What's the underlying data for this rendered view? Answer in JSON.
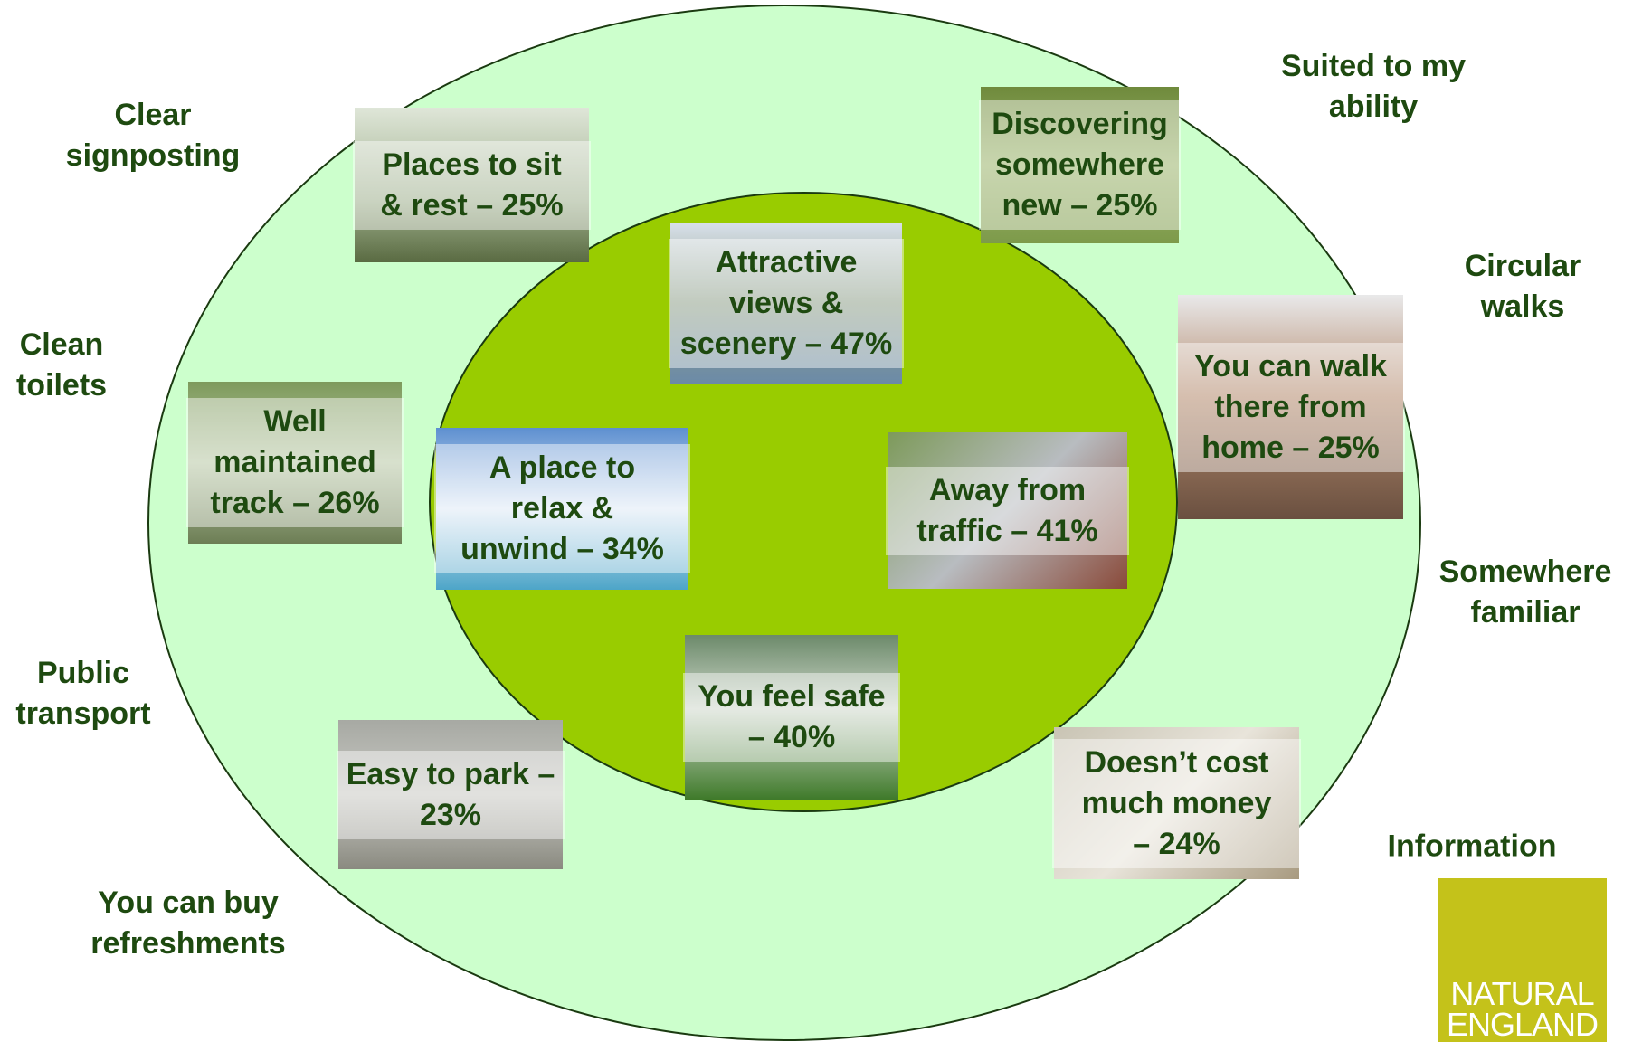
{
  "outer_labels": [
    {
      "lines": [
        "Clear",
        "signposting"
      ]
    },
    {
      "lines": [
        "Clean",
        "toilets"
      ]
    },
    {
      "lines": [
        "Public",
        "transport"
      ]
    },
    {
      "lines": [
        "You can buy",
        "refreshments"
      ]
    },
    {
      "lines": [
        "Suited to my",
        "ability"
      ]
    },
    {
      "lines": [
        "Circular",
        "walks"
      ]
    },
    {
      "lines": [
        "Somewhere",
        "familiar"
      ]
    },
    {
      "lines": [
        "Information"
      ]
    }
  ],
  "photo_boxes": [
    {
      "lines": [
        "Places to sit",
        "& rest – 25%"
      ]
    },
    {
      "lines": [
        "Discovering",
        "somewhere",
        "new – 25%"
      ]
    },
    {
      "lines": [
        "Attractive",
        "views &",
        "scenery – 47%"
      ]
    },
    {
      "lines": [
        "Well",
        "maintained",
        "track – 26%"
      ]
    },
    {
      "lines": [
        "A place to",
        "relax &",
        "unwind – 34%"
      ]
    },
    {
      "lines": [
        "Away from",
        "traffic – 41%"
      ]
    },
    {
      "lines": [
        "You can walk",
        "there from",
        "home – 25%"
      ]
    },
    {
      "lines": [
        "You feel safe",
        "– 40%"
      ]
    },
    {
      "lines": [
        "Easy to park –",
        "23%"
      ]
    },
    {
      "lines": [
        "Doesn’t cost",
        "much money",
        "– 24%"
      ]
    }
  ],
  "logo": {
    "lines": [
      "NATURAL",
      "ENGLAND"
    ]
  }
}
